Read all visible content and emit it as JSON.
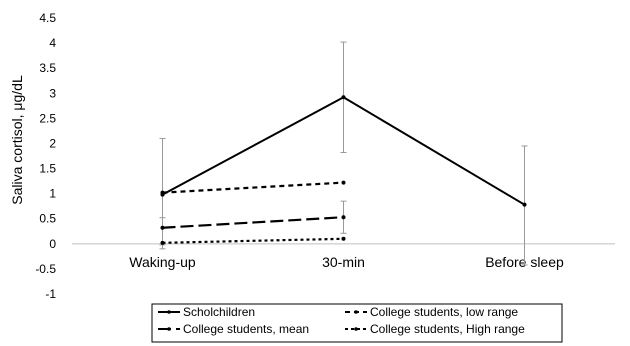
{
  "chart_data": {
    "type": "line",
    "title": "",
    "xlabel": "",
    "ylabel": "Saliva cortisol, μg/dL",
    "ylim": [
      -1,
      4.5
    ],
    "yticks": [
      4.5,
      4,
      3.5,
      3,
      2.5,
      2,
      1.5,
      1,
      0.5,
      0,
      -0.5,
      -1
    ],
    "ytick_labels": [
      "4.5",
      "4",
      "3.5",
      "3",
      "2.5",
      "2",
      "1.5",
      "1",
      "0.5",
      "0",
      "-0.5",
      "-1"
    ],
    "categories": [
      "Waking-up",
      "30-min",
      "Before sleep"
    ],
    "grid": false,
    "legend_position": "bottom",
    "series": [
      {
        "name": "Scholchildren",
        "style": "solid",
        "values": [
          0.98,
          2.92,
          0.78
        ],
        "error_low": [
          -0.1,
          1.82,
          -0.42
        ],
        "error_high": [
          2.1,
          4.02,
          1.95
        ]
      },
      {
        "name": "College students, mean",
        "style": "long-dash",
        "values": [
          0.32,
          0.53,
          null
        ],
        "error_low": [
          -0.02,
          0.21,
          null
        ],
        "error_high": [
          0.52,
          0.85,
          null
        ]
      },
      {
        "name": "College students, low range",
        "style": "short-dash",
        "values": [
          1.02,
          1.22,
          null
        ]
      },
      {
        "name": "College students, High range",
        "style": "dotted",
        "values": [
          0.02,
          0.1,
          null
        ]
      }
    ],
    "colors": {
      "line": "#000000",
      "error_bar": "#999999",
      "axis": "#bfbfbf"
    }
  }
}
